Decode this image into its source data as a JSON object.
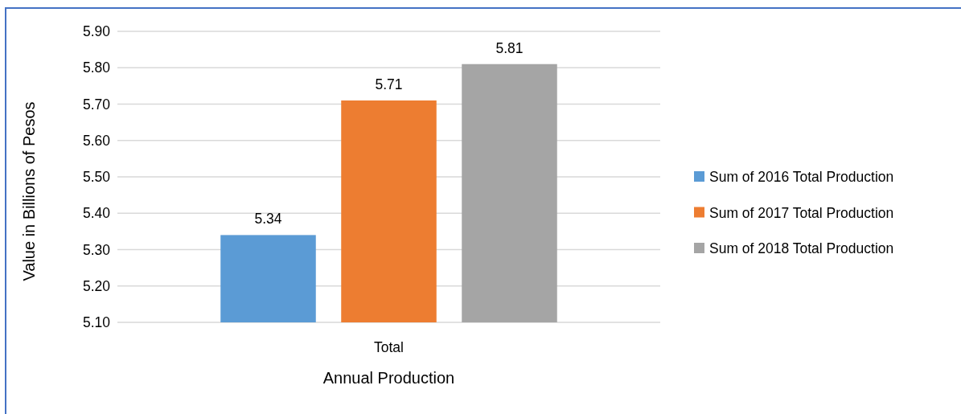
{
  "chart_data": {
    "type": "bar",
    "categories": [
      "Total"
    ],
    "series": [
      {
        "name": "Sum of 2016 Total Production",
        "color": "#5b9bd5",
        "values": [
          5.34
        ]
      },
      {
        "name": "Sum of 2017 Total Production",
        "color": "#ed7d31",
        "values": [
          5.71
        ]
      },
      {
        "name": "Sum of 2018 Total Production",
        "color": "#a5a5a5",
        "values": [
          5.81
        ]
      }
    ],
    "xlabel": "Annual Production",
    "ylabel": "Value in Billions of Pesos",
    "ylim": [
      5.1,
      5.9
    ],
    "yticks": [
      {
        "value": 5.1,
        "label": "5.10"
      },
      {
        "value": 5.2,
        "label": "5.20"
      },
      {
        "value": 5.3,
        "label": "5.30"
      },
      {
        "value": 5.4,
        "label": "5.40"
      },
      {
        "value": 5.5,
        "label": "5.50"
      },
      {
        "value": 5.6,
        "label": "5.60"
      },
      {
        "value": 5.7,
        "label": "5.70"
      },
      {
        "value": 5.8,
        "label": "5.80"
      },
      {
        "value": 5.9,
        "label": "5.90"
      }
    ],
    "grid": "y",
    "legend": "right",
    "data_labels": true
  }
}
